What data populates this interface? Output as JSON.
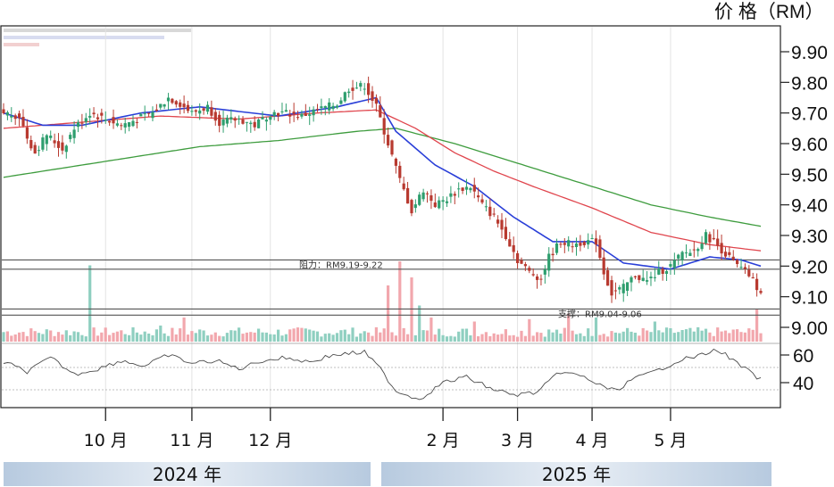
{
  "chart_data": {
    "type": "candlestick",
    "ylabel": "价 格（RM）",
    "ylim": [
      8.96,
      9.95
    ],
    "yticks": [
      "9.90",
      "9.80",
      "9.70",
      "9.60",
      "9.50",
      "9.40",
      "9.30",
      "9.20",
      "9.10",
      "9.00"
    ],
    "indicator_ticks": [
      "60",
      "40"
    ],
    "months": [
      {
        "label": "10 月",
        "day": 26
      },
      {
        "label": "11 月",
        "day": 48
      },
      {
        "label": "12 月",
        "day": 68
      },
      {
        "label": "2 月",
        "day": 112
      },
      {
        "label": "3 月",
        "day": 131
      },
      {
        "label": "4 月",
        "day": 150
      },
      {
        "label": "5 月",
        "day": 170
      }
    ],
    "years": [
      {
        "label": "2024 年",
        "from_day": 0,
        "to_day": 92
      },
      {
        "label": "2025 年",
        "from_day": 94,
        "to_day": 193
      }
    ],
    "day_count": 194,
    "close_anchors": [
      [
        0,
        9.7
      ],
      [
        4,
        9.69
      ],
      [
        6,
        9.62
      ],
      [
        8,
        9.57
      ],
      [
        11,
        9.63
      ],
      [
        15,
        9.58
      ],
      [
        18,
        9.65
      ],
      [
        22,
        9.7
      ],
      [
        26,
        9.68
      ],
      [
        30,
        9.66
      ],
      [
        34,
        9.68
      ],
      [
        38,
        9.7
      ],
      [
        42,
        9.75
      ],
      [
        45,
        9.73
      ],
      [
        48,
        9.7
      ],
      [
        52,
        9.72
      ],
      [
        55,
        9.67
      ],
      [
        60,
        9.68
      ],
      [
        64,
        9.66
      ],
      [
        68,
        9.7
      ],
      [
        72,
        9.7
      ],
      [
        76,
        9.69
      ],
      [
        80,
        9.71
      ],
      [
        85,
        9.73
      ],
      [
        88,
        9.78
      ],
      [
        92,
        9.79
      ],
      [
        95,
        9.72
      ],
      [
        98,
        9.6
      ],
      [
        101,
        9.48
      ],
      [
        104,
        9.38
      ],
      [
        107,
        9.45
      ],
      [
        110,
        9.4
      ],
      [
        113,
        9.42
      ],
      [
        116,
        9.45
      ],
      [
        119,
        9.46
      ],
      [
        122,
        9.4
      ],
      [
        125,
        9.36
      ],
      [
        128,
        9.3
      ],
      [
        131,
        9.22
      ],
      [
        134,
        9.18
      ],
      [
        137,
        9.16
      ],
      [
        139,
        9.23
      ],
      [
        142,
        9.28
      ],
      [
        145,
        9.27
      ],
      [
        148,
        9.28
      ],
      [
        151,
        9.28
      ],
      [
        153,
        9.18
      ],
      [
        155,
        9.11
      ],
      [
        158,
        9.13
      ],
      [
        161,
        9.17
      ],
      [
        164,
        9.15
      ],
      [
        167,
        9.18
      ],
      [
        170,
        9.2
      ],
      [
        173,
        9.24
      ],
      [
        176,
        9.25
      ],
      [
        179,
        9.3
      ],
      [
        181,
        9.28
      ],
      [
        184,
        9.24
      ],
      [
        187,
        9.2
      ],
      [
        190,
        9.17
      ],
      [
        193,
        9.11
      ]
    ],
    "ma_anchors": {
      "blue": [
        [
          0,
          9.7
        ],
        [
          10,
          9.66
        ],
        [
          20,
          9.66
        ],
        [
          35,
          9.7
        ],
        [
          50,
          9.72
        ],
        [
          70,
          9.69
        ],
        [
          85,
          9.72
        ],
        [
          95,
          9.75
        ],
        [
          100,
          9.64
        ],
        [
          110,
          9.53
        ],
        [
          120,
          9.46
        ],
        [
          130,
          9.36
        ],
        [
          140,
          9.28
        ],
        [
          150,
          9.28
        ],
        [
          158,
          9.21
        ],
        [
          170,
          9.19
        ],
        [
          180,
          9.23
        ],
        [
          188,
          9.22
        ],
        [
          193,
          9.2
        ]
      ],
      "red": [
        [
          0,
          9.65
        ],
        [
          20,
          9.67
        ],
        [
          40,
          9.69
        ],
        [
          60,
          9.68
        ],
        [
          80,
          9.7
        ],
        [
          95,
          9.71
        ],
        [
          105,
          9.65
        ],
        [
          115,
          9.57
        ],
        [
          125,
          9.51
        ],
        [
          135,
          9.46
        ],
        [
          150,
          9.39
        ],
        [
          165,
          9.31
        ],
        [
          180,
          9.27
        ],
        [
          193,
          9.25
        ]
      ],
      "green": [
        [
          0,
          9.49
        ],
        [
          15,
          9.52
        ],
        [
          30,
          9.55
        ],
        [
          50,
          9.59
        ],
        [
          70,
          9.61
        ],
        [
          90,
          9.64
        ],
        [
          100,
          9.65
        ],
        [
          115,
          9.6
        ],
        [
          130,
          9.54
        ],
        [
          150,
          9.46
        ],
        [
          165,
          9.4
        ],
        [
          180,
          9.36
        ],
        [
          193,
          9.33
        ]
      ]
    },
    "indicator_anchors": [
      [
        0,
        55
      ],
      [
        6,
        48
      ],
      [
        12,
        58
      ],
      [
        18,
        46
      ],
      [
        24,
        50
      ],
      [
        30,
        56
      ],
      [
        36,
        52
      ],
      [
        42,
        60
      ],
      [
        48,
        54
      ],
      [
        54,
        56
      ],
      [
        60,
        50
      ],
      [
        66,
        56
      ],
      [
        72,
        58
      ],
      [
        78,
        55
      ],
      [
        84,
        60
      ],
      [
        92,
        62
      ],
      [
        96,
        50
      ],
      [
        100,
        34
      ],
      [
        106,
        28
      ],
      [
        112,
        40
      ],
      [
        118,
        44
      ],
      [
        124,
        36
      ],
      [
        130,
        31
      ],
      [
        136,
        33
      ],
      [
        142,
        48
      ],
      [
        148,
        44
      ],
      [
        152,
        38
      ],
      [
        156,
        34
      ],
      [
        160,
        42
      ],
      [
        166,
        48
      ],
      [
        172,
        56
      ],
      [
        178,
        60
      ],
      [
        182,
        64
      ],
      [
        188,
        52
      ],
      [
        193,
        42
      ]
    ],
    "volume_spikes": [
      [
        22,
        0.95
      ],
      [
        40,
        0.2
      ],
      [
        46,
        0.3
      ],
      [
        98,
        0.7
      ],
      [
        101,
        1.0
      ],
      [
        104,
        0.8
      ],
      [
        106,
        0.45
      ],
      [
        109,
        0.3
      ],
      [
        120,
        0.25
      ],
      [
        134,
        0.28
      ],
      [
        144,
        0.35
      ],
      [
        151,
        0.3
      ],
      [
        166,
        0.25
      ],
      [
        192,
        0.4
      ]
    ],
    "resistance": {
      "label": "阻力：RM9.19-9.22",
      "low": 9.19,
      "high": 9.22
    },
    "support": {
      "label": "支撑：RM9.04-9.06",
      "low": 9.04,
      "high": 9.06
    },
    "colors": {
      "up": "#2e9e6e",
      "down": "#b83a30",
      "ma_blue": "#2a3fd8",
      "ma_red": "#e0454d",
      "ma_green": "#3e9c3e",
      "indicator": "#4a4a4a",
      "year_band": "#b7cadf"
    }
  }
}
